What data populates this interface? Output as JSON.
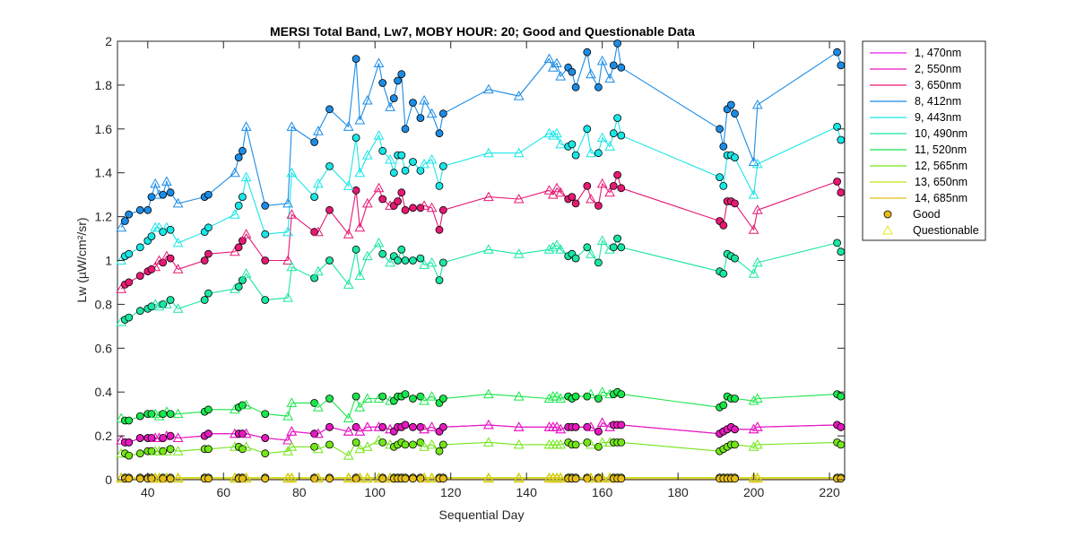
{
  "chart_data": {
    "type": "line",
    "title": "MERSI Total Band,  Lw7, MOBY HOUR: 20;  Good and Questionable Data",
    "xlabel": "Sequential Day",
    "ylabel": "Lw (µW/cm²/sr)",
    "xlim": [
      32,
      224
    ],
    "ylim": [
      0,
      2
    ],
    "xticks": [
      40,
      60,
      80,
      100,
      120,
      140,
      160,
      180,
      200,
      220
    ],
    "yticks": [
      0,
      0.2,
      0.4,
      0.6,
      0.8,
      1,
      1.2,
      1.4,
      1.6,
      1.8,
      2
    ],
    "ytick_labels": [
      "0",
      "0.2",
      "0.4",
      "0.6",
      "0.8",
      "1",
      "1.2",
      "1.4",
      "1.6",
      "1.8",
      "2"
    ],
    "grid": false,
    "legend_position": "outside-top-right",
    "legend": {
      "good_label": "Good",
      "questionable_label": "Questionable"
    },
    "x": [
      33,
      34,
      35,
      38,
      40,
      41,
      42,
      43,
      44,
      45,
      46,
      48,
      55,
      56,
      63,
      64,
      65,
      66,
      71,
      77,
      78,
      84,
      85,
      88,
      93,
      95,
      96,
      98,
      101,
      102,
      104,
      105,
      106,
      107,
      108,
      110,
      112,
      113,
      115,
      117,
      118,
      130,
      138,
      146,
      147,
      148,
      149,
      151,
      152,
      153,
      156,
      157,
      159,
      160,
      162,
      163,
      164,
      165,
      191,
      192,
      193,
      194,
      195,
      200,
      201,
      222,
      223
    ],
    "quality": [
      "Q",
      "G",
      "G",
      "G",
      "G",
      "G",
      "Q",
      "Q",
      "G",
      "Q",
      "G",
      "Q",
      "G",
      "G",
      "Q",
      "G",
      "G",
      "Q",
      "G",
      "Q",
      "Q",
      "G",
      "Q",
      "G",
      "Q",
      "G",
      "Q",
      "Q",
      "Q",
      "G",
      "Q",
      "G",
      "G",
      "G",
      "G",
      "G",
      "G",
      "Q",
      "Q",
      "G",
      "G",
      "Q",
      "Q",
      "Q",
      "Q",
      "Q",
      "Q",
      "G",
      "G",
      "G",
      "G",
      "Q",
      "G",
      "Q",
      "Q",
      "G",
      "G",
      "G",
      "G",
      "G",
      "G",
      "G",
      "G",
      "Q",
      "Q",
      "G",
      "G"
    ],
    "series": [
      {
        "name": "1, 470nm",
        "color": "#E619E6",
        "values": [
          0.18,
          0.17,
          0.17,
          0.19,
          0.19,
          0.19,
          0.19,
          0.19,
          0.19,
          0.2,
          0.2,
          0.19,
          0.2,
          0.21,
          0.21,
          0.21,
          0.21,
          0.21,
          0.19,
          0.18,
          0.22,
          0.21,
          0.21,
          0.24,
          0.22,
          0.24,
          0.22,
          0.24,
          0.24,
          0.24,
          0.23,
          0.22,
          0.24,
          0.24,
          0.25,
          0.24,
          0.24,
          0.23,
          0.24,
          0.22,
          0.24,
          0.25,
          0.24,
          0.24,
          0.24,
          0.24,
          0.23,
          0.24,
          0.24,
          0.24,
          0.24,
          0.24,
          0.22,
          0.26,
          0.24,
          0.25,
          0.25,
          0.25,
          0.21,
          0.22,
          0.23,
          0.24,
          0.23,
          0.23,
          0.24,
          0.25,
          0.24
        ]
      },
      {
        "name": "2, 550nm",
        "color": "#E619BE",
        "values": [
          0.18,
          0.17,
          0.17,
          0.19,
          0.19,
          0.19,
          0.19,
          0.19,
          0.19,
          0.2,
          0.2,
          0.19,
          0.2,
          0.21,
          0.21,
          0.21,
          0.21,
          0.21,
          0.19,
          0.18,
          0.22,
          0.21,
          0.21,
          0.24,
          0.22,
          0.24,
          0.22,
          0.24,
          0.24,
          0.24,
          0.23,
          0.22,
          0.24,
          0.24,
          0.25,
          0.24,
          0.24,
          0.23,
          0.24,
          0.22,
          0.24,
          0.25,
          0.24,
          0.24,
          0.24,
          0.24,
          0.23,
          0.24,
          0.24,
          0.24,
          0.24,
          0.24,
          0.22,
          0.26,
          0.24,
          0.25,
          0.25,
          0.25,
          0.21,
          0.22,
          0.23,
          0.24,
          0.23,
          0.23,
          0.24,
          0.25,
          0.24
        ]
      },
      {
        "name": "3, 650nm",
        "color": "#E61973",
        "values": [
          0.87,
          0.89,
          0.9,
          0.93,
          0.95,
          0.96,
          0.97,
          1.0,
          0.99,
          1.02,
          1.01,
          0.96,
          1.0,
          1.03,
          1.04,
          1.06,
          1.09,
          1.12,
          1.0,
          1.0,
          1.21,
          1.13,
          1.13,
          1.23,
          1.12,
          1.32,
          1.15,
          1.26,
          1.33,
          1.28,
          1.25,
          1.25,
          1.27,
          1.31,
          1.23,
          1.24,
          1.24,
          1.25,
          1.24,
          1.14,
          1.23,
          1.29,
          1.28,
          1.32,
          1.3,
          1.33,
          1.31,
          1.28,
          1.29,
          1.26,
          1.34,
          1.28,
          1.25,
          1.35,
          1.31,
          1.34,
          1.39,
          1.33,
          1.18,
          1.16,
          1.27,
          1.27,
          1.26,
          1.14,
          1.23,
          1.36,
          1.31
        ]
      },
      {
        "name": "8, 412nm",
        "color": "#1B8CE6",
        "values": [
          1.15,
          1.18,
          1.21,
          1.23,
          1.23,
          1.29,
          1.35,
          1.3,
          1.3,
          1.36,
          1.31,
          1.26,
          1.29,
          1.3,
          1.4,
          1.47,
          1.5,
          1.61,
          1.25,
          1.26,
          1.61,
          1.54,
          1.59,
          1.69,
          1.61,
          1.92,
          1.64,
          1.73,
          1.9,
          1.81,
          1.7,
          1.74,
          1.82,
          1.85,
          1.6,
          1.72,
          1.65,
          1.73,
          1.67,
          1.58,
          1.67,
          1.78,
          1.75,
          1.92,
          1.88,
          1.9,
          1.84,
          1.88,
          1.86,
          1.79,
          1.95,
          1.85,
          1.79,
          1.91,
          1.83,
          1.89,
          1.99,
          1.88,
          1.6,
          1.52,
          1.69,
          1.71,
          1.67,
          1.45,
          1.71,
          1.95,
          1.89
        ]
      },
      {
        "name": "9, 443nm",
        "color": "#19E6E6",
        "values": [
          1.0,
          1.02,
          1.03,
          1.06,
          1.09,
          1.11,
          1.15,
          1.15,
          1.13,
          1.15,
          1.14,
          1.08,
          1.13,
          1.15,
          1.21,
          1.25,
          1.29,
          1.38,
          1.12,
          1.13,
          1.4,
          1.29,
          1.35,
          1.43,
          1.34,
          1.56,
          1.4,
          1.48,
          1.57,
          1.5,
          1.46,
          1.4,
          1.48,
          1.48,
          1.41,
          1.45,
          1.41,
          1.44,
          1.46,
          1.34,
          1.43,
          1.49,
          1.49,
          1.58,
          1.57,
          1.58,
          1.53,
          1.52,
          1.53,
          1.48,
          1.6,
          1.49,
          1.49,
          1.56,
          1.52,
          1.58,
          1.65,
          1.57,
          1.38,
          1.34,
          1.48,
          1.48,
          1.47,
          1.3,
          1.44,
          1.61,
          1.55
        ]
      },
      {
        "name": "10, 490nm",
        "color": "#19E6A5",
        "values": [
          0.72,
          0.73,
          0.74,
          0.77,
          0.78,
          0.79,
          0.8,
          0.79,
          0.8,
          0.8,
          0.82,
          0.78,
          0.82,
          0.85,
          0.87,
          0.88,
          0.91,
          0.94,
          0.82,
          0.83,
          0.97,
          0.92,
          0.95,
          1.0,
          0.89,
          1.05,
          0.93,
          1.02,
          1.08,
          1.03,
          0.99,
          1.02,
          1.0,
          1.05,
          1.0,
          1.0,
          1.01,
          0.98,
          0.99,
          0.91,
          0.99,
          1.05,
          1.03,
          1.05,
          1.06,
          1.07,
          1.05,
          1.02,
          1.03,
          1.01,
          1.06,
          1.03,
          0.99,
          1.09,
          1.05,
          1.06,
          1.1,
          1.06,
          0.95,
          0.94,
          1.03,
          1.02,
          1.01,
          0.94,
          0.99,
          1.08,
          1.04
        ]
      },
      {
        "name": "11, 520nm",
        "color": "#19E64B",
        "values": [
          0.28,
          0.27,
          0.27,
          0.29,
          0.3,
          0.3,
          0.3,
          0.29,
          0.3,
          0.31,
          0.3,
          0.3,
          0.31,
          0.32,
          0.32,
          0.33,
          0.34,
          0.34,
          0.3,
          0.29,
          0.35,
          0.35,
          0.33,
          0.37,
          0.28,
          0.38,
          0.33,
          0.37,
          0.37,
          0.38,
          0.36,
          0.36,
          0.38,
          0.38,
          0.39,
          0.37,
          0.38,
          0.36,
          0.38,
          0.35,
          0.37,
          0.39,
          0.38,
          0.37,
          0.38,
          0.38,
          0.37,
          0.38,
          0.37,
          0.38,
          0.38,
          0.39,
          0.37,
          0.4,
          0.39,
          0.39,
          0.4,
          0.39,
          0.33,
          0.34,
          0.38,
          0.37,
          0.37,
          0.36,
          0.37,
          0.39,
          0.38
        ]
      },
      {
        "name": "12, 565nm",
        "color": "#73E619",
        "values": [
          0.12,
          0.12,
          0.11,
          0.12,
          0.13,
          0.13,
          0.13,
          0.13,
          0.13,
          0.13,
          0.14,
          0.13,
          0.14,
          0.14,
          0.15,
          0.15,
          0.14,
          0.15,
          0.12,
          0.13,
          0.15,
          0.15,
          0.14,
          0.16,
          0.11,
          0.17,
          0.14,
          0.15,
          0.18,
          0.17,
          0.16,
          0.15,
          0.16,
          0.17,
          0.16,
          0.16,
          0.17,
          0.15,
          0.16,
          0.13,
          0.16,
          0.17,
          0.16,
          0.16,
          0.16,
          0.16,
          0.16,
          0.17,
          0.16,
          0.16,
          0.17,
          0.16,
          0.15,
          0.17,
          0.17,
          0.17,
          0.17,
          0.17,
          0.13,
          0.14,
          0.15,
          0.16,
          0.16,
          0.15,
          0.16,
          0.17,
          0.16
        ]
      },
      {
        "name": "13, 650nm",
        "color": "#BEE619",
        "values": [
          0.01,
          0.01,
          0.01,
          0.01,
          0.01,
          0.01,
          0.01,
          0.01,
          0.01,
          0.01,
          0.01,
          0.01,
          0.01,
          0.01,
          0.01,
          0.01,
          0.01,
          0.01,
          0.01,
          0.01,
          0.01,
          0.01,
          0.01,
          0.01,
          0.01,
          0.01,
          0.01,
          0.01,
          0.01,
          0.01,
          0.01,
          0.01,
          0.01,
          0.01,
          0.01,
          0.01,
          0.01,
          0.01,
          0.01,
          0.01,
          0.01,
          0.01,
          0.01,
          0.01,
          0.01,
          0.01,
          0.01,
          0.01,
          0.01,
          0.01,
          0.01,
          0.01,
          0.01,
          0.01,
          0.01,
          0.01,
          0.01,
          0.01,
          0.01,
          0.01,
          0.01,
          0.01,
          0.01,
          0.01,
          0.01,
          0.01,
          0.01
        ]
      },
      {
        "name": "14, 685nm",
        "color": "#E6BE19",
        "values": [
          0.005,
          0.005,
          0.005,
          0.005,
          0.005,
          0.005,
          0.005,
          0.005,
          0.005,
          0.005,
          0.005,
          0.005,
          0.005,
          0.005,
          0.005,
          0.005,
          0.005,
          0.005,
          0.005,
          0.005,
          0.005,
          0.005,
          0.005,
          0.005,
          0.005,
          0.005,
          0.005,
          0.005,
          0.005,
          0.005,
          0.005,
          0.005,
          0.005,
          0.005,
          0.005,
          0.005,
          0.005,
          0.005,
          0.005,
          0.005,
          0.005,
          0.005,
          0.005,
          0.005,
          0.005,
          0.005,
          0.005,
          0.005,
          0.005,
          0.005,
          0.005,
          0.005,
          0.005,
          0.005,
          0.005,
          0.005,
          0.005,
          0.005,
          0.005,
          0.005,
          0.005,
          0.005,
          0.005,
          0.005,
          0.005,
          0.005,
          0.005
        ]
      }
    ]
  }
}
